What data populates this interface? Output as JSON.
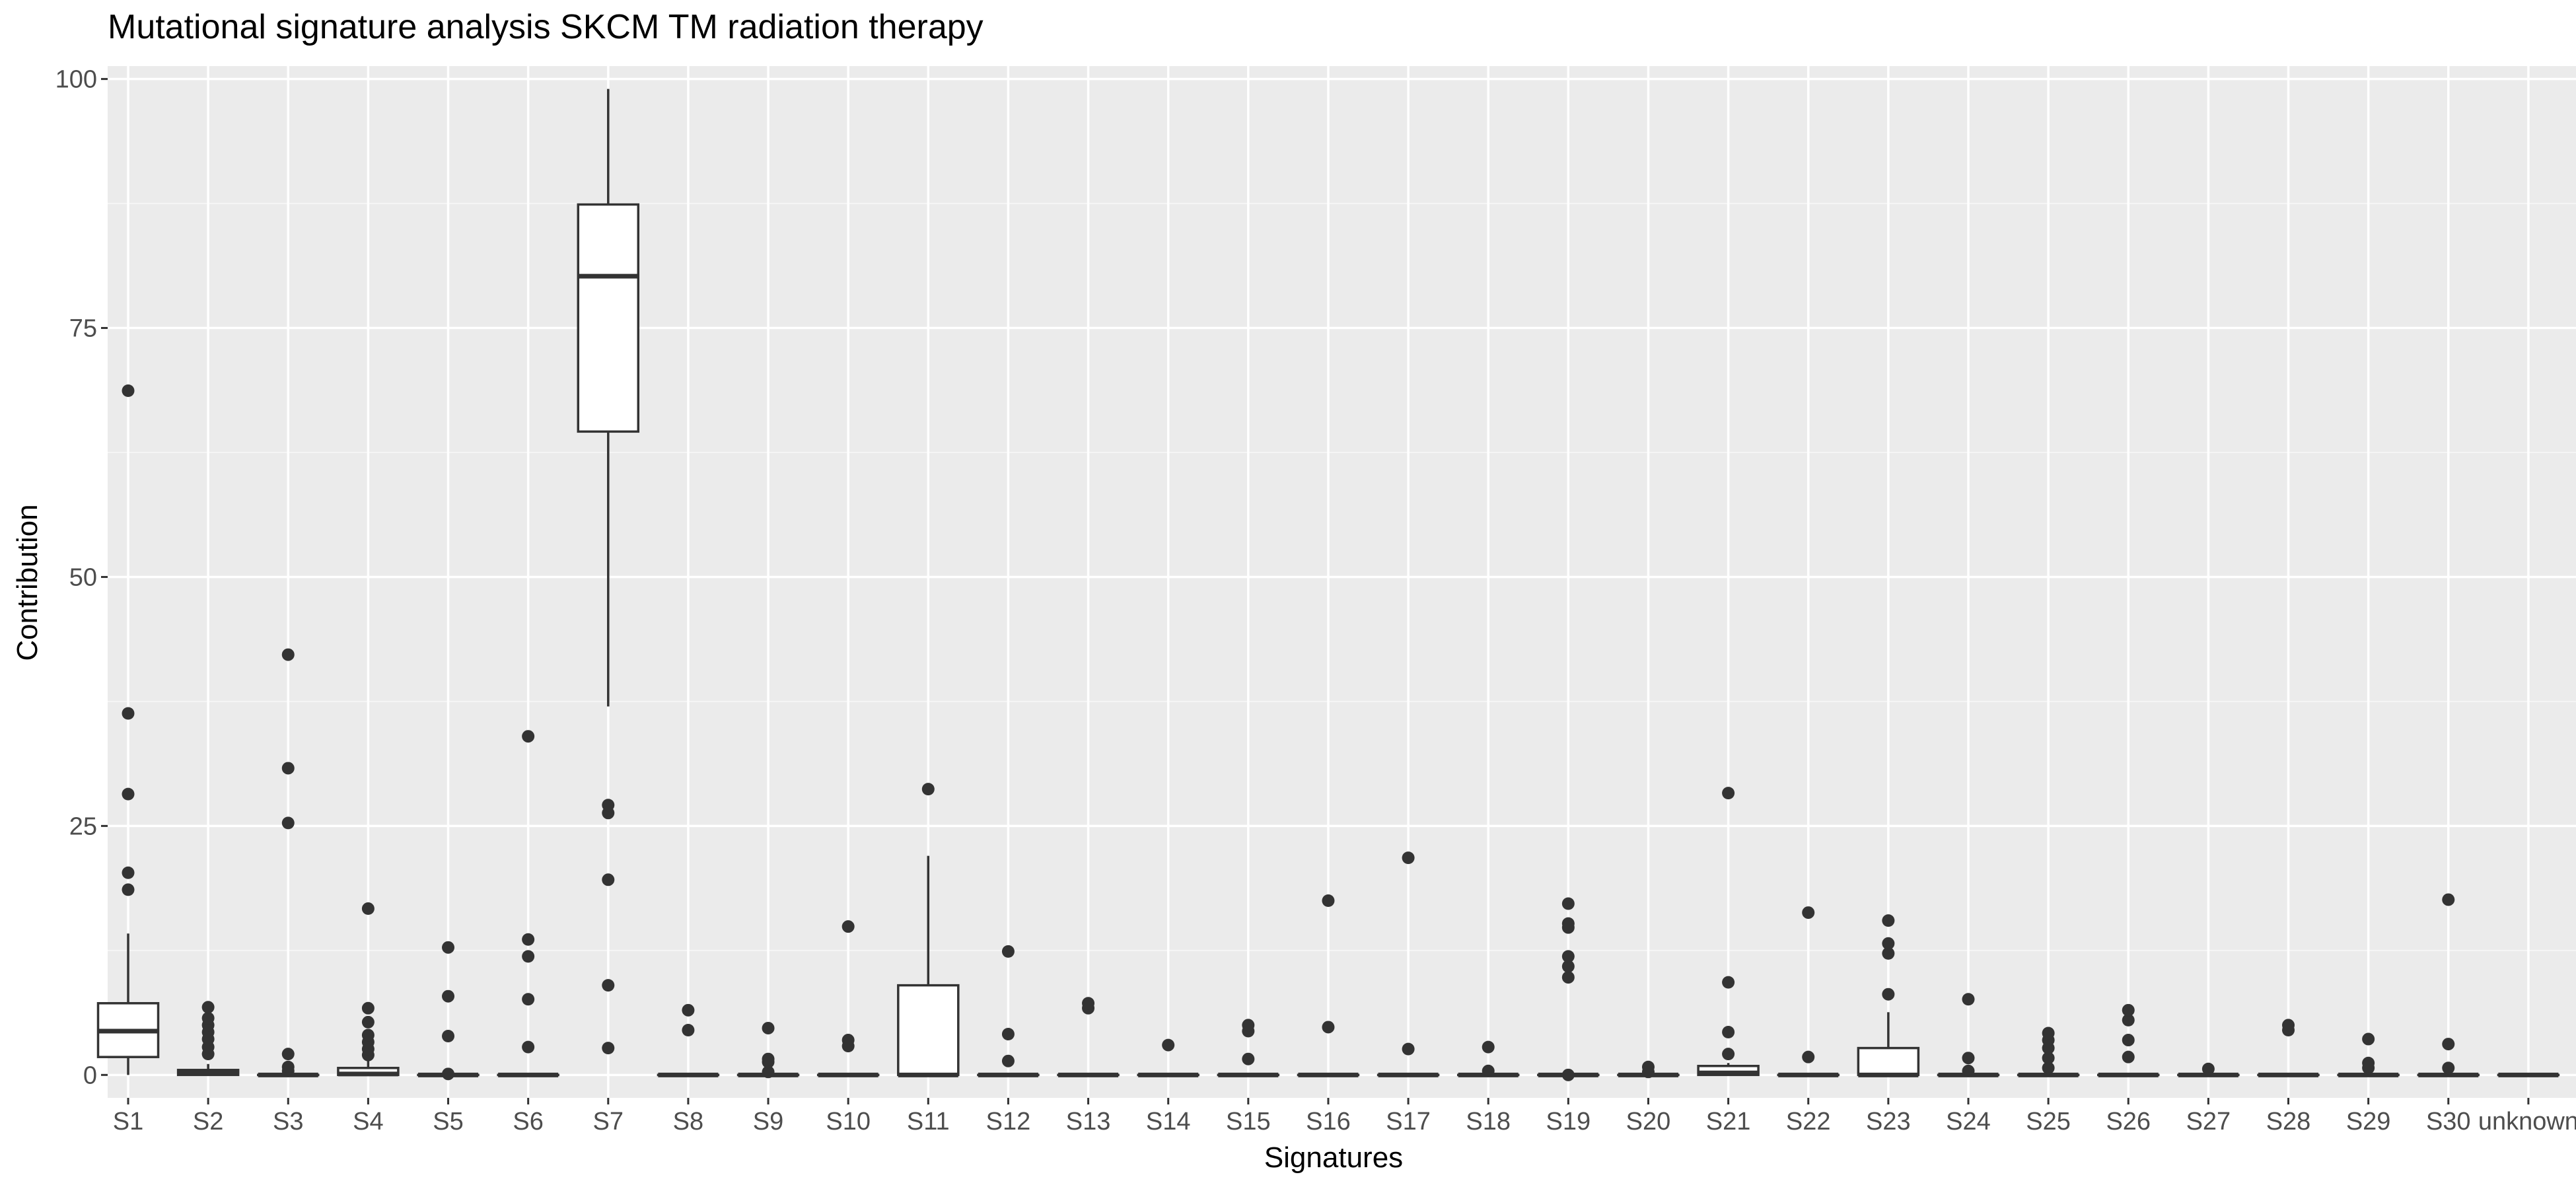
{
  "chart_data": {
    "type": "boxplot",
    "title": "Mutational signature analysis SKCM TM radiation therapy",
    "xlabel": "Signatures",
    "ylabel": "Contribution",
    "ylim": [
      0,
      100
    ],
    "yticks": [
      0,
      25,
      50,
      75,
      100
    ],
    "grid": true,
    "legend": "none",
    "colors": {
      "panel": "#EBEBEB",
      "grid_major": "#FFFFFF",
      "grid_minor": "#F5F5F5",
      "box_fill": "#FFFFFF",
      "box_line": "#333333",
      "outlier": "#333333",
      "tick_label": "#4D4D4D"
    },
    "categories": [
      "S1",
      "S2",
      "S3",
      "S4",
      "S5",
      "S6",
      "S7",
      "S8",
      "S9",
      "S10",
      "S11",
      "S12",
      "S13",
      "S14",
      "S15",
      "S16",
      "S17",
      "S18",
      "S19",
      "S20",
      "S21",
      "S22",
      "S23",
      "S24",
      "S25",
      "S26",
      "S27",
      "S28",
      "S29",
      "S30",
      "unknown"
    ],
    "boxes": [
      {
        "q1": 1.8,
        "median": 4.4,
        "q3": 7.2,
        "lower": 0,
        "upper": 14.2,
        "outliers": [
          18.6,
          20.3,
          28.2,
          36.3,
          68.7
        ]
      },
      {
        "q1": 0,
        "median": 0.2,
        "q3": 0.5,
        "lower": 0,
        "upper": 1.1,
        "outliers": [
          2.1,
          2.8,
          3.6,
          4.3,
          5.0,
          5.7,
          6.8
        ]
      },
      {
        "q1": 0,
        "median": 0,
        "q3": 0,
        "lower": 0,
        "upper": 0,
        "outliers": [
          0.4,
          0.8,
          2.1,
          25.3,
          30.8,
          42.2
        ]
      },
      {
        "q1": 0,
        "median": 0.1,
        "q3": 0.7,
        "lower": 0,
        "upper": 1.6,
        "outliers": [
          2.0,
          2.6,
          3.3,
          4.0,
          5.3,
          6.7,
          16.7
        ]
      },
      {
        "q1": 0,
        "median": 0,
        "q3": 0,
        "lower": 0,
        "upper": 0,
        "outliers": [
          0.1,
          3.9,
          7.9,
          12.8
        ]
      },
      {
        "q1": 0,
        "median": 0,
        "q3": 0,
        "lower": 0,
        "upper": 0,
        "outliers": [
          2.8,
          7.6,
          11.9,
          13.6,
          34.0
        ]
      },
      {
        "q1": 64.6,
        "median": 80.2,
        "q3": 87.4,
        "lower": 37.0,
        "upper": 99.0,
        "outliers": [
          2.7,
          9.0,
          19.6,
          26.3,
          27.1
        ]
      },
      {
        "q1": 0,
        "median": 0,
        "q3": 0,
        "lower": 0,
        "upper": 0,
        "outliers": [
          4.5,
          6.5
        ]
      },
      {
        "q1": 0,
        "median": 0,
        "q3": 0,
        "lower": 0,
        "upper": 0,
        "outliers": [
          0.3,
          1.3,
          1.6,
          4.7
        ]
      },
      {
        "q1": 0,
        "median": 0,
        "q3": 0,
        "lower": 0,
        "upper": 0,
        "outliers": [
          2.9,
          3.5,
          14.9
        ]
      },
      {
        "q1": 0,
        "median": 0,
        "q3": 9.0,
        "lower": 0,
        "upper": 22.0,
        "outliers": [
          28.7
        ]
      },
      {
        "q1": 0,
        "median": 0,
        "q3": 0,
        "lower": 0,
        "upper": 0,
        "outliers": [
          1.4,
          4.1,
          12.4
        ]
      },
      {
        "q1": 0,
        "median": 0,
        "q3": 0,
        "lower": 0,
        "upper": 0,
        "outliers": [
          6.7,
          7.2
        ]
      },
      {
        "q1": 0,
        "median": 0,
        "q3": 0,
        "lower": 0,
        "upper": 0,
        "outliers": [
          3.0
        ]
      },
      {
        "q1": 0,
        "median": 0,
        "q3": 0,
        "lower": 0,
        "upper": 0,
        "outliers": [
          1.6,
          4.4,
          5.0
        ]
      },
      {
        "q1": 0,
        "median": 0,
        "q3": 0,
        "lower": 0,
        "upper": 0,
        "outliers": [
          4.8,
          17.5
        ]
      },
      {
        "q1": 0,
        "median": 0,
        "q3": 0,
        "lower": 0,
        "upper": 0,
        "outliers": [
          2.6,
          21.8
        ]
      },
      {
        "q1": 0,
        "median": 0,
        "q3": 0,
        "lower": 0,
        "upper": 0,
        "outliers": [
          0.4,
          2.8
        ]
      },
      {
        "q1": 0,
        "median": 0,
        "q3": 0,
        "lower": 0,
        "upper": 0,
        "outliers": [
          0,
          9.8,
          10.9,
          11.9,
          14.8,
          15.2,
          17.2
        ]
      },
      {
        "q1": 0,
        "median": 0,
        "q3": 0,
        "lower": 0,
        "upper": 0,
        "outliers": [
          0.3,
          0.8
        ]
      },
      {
        "q1": 0,
        "median": 0.2,
        "q3": 0.9,
        "lower": 0,
        "upper": 1.2,
        "outliers": [
          2.1,
          4.3,
          9.3,
          28.3
        ]
      },
      {
        "q1": 0,
        "median": 0,
        "q3": 0,
        "lower": 0,
        "upper": 0,
        "outliers": [
          1.8,
          16.3
        ]
      },
      {
        "q1": 0,
        "median": 0,
        "q3": 2.7,
        "lower": 0,
        "upper": 6.3,
        "outliers": [
          8.1,
          12.2,
          13.2,
          15.5
        ]
      },
      {
        "q1": 0,
        "median": 0,
        "q3": 0,
        "lower": 0,
        "upper": 0,
        "outliers": [
          0.4,
          1.7,
          7.6
        ]
      },
      {
        "q1": 0,
        "median": 0,
        "q3": 0,
        "lower": 0,
        "upper": 0,
        "outliers": [
          0.7,
          1.7,
          2.7,
          3.5,
          4.2
        ]
      },
      {
        "q1": 0,
        "median": 0,
        "q3": 0,
        "lower": 0,
        "upper": 0,
        "outliers": [
          1.8,
          3.5,
          5.5,
          6.5
        ]
      },
      {
        "q1": 0,
        "median": 0,
        "q3": 0,
        "lower": 0,
        "upper": 0,
        "outliers": [
          0.6
        ]
      },
      {
        "q1": 0,
        "median": 0,
        "q3": 0,
        "lower": 0,
        "upper": 0,
        "outliers": [
          4.5,
          5.0
        ]
      },
      {
        "q1": 0,
        "median": 0,
        "q3": 0,
        "lower": 0,
        "upper": 0,
        "outliers": [
          0.7,
          1.2,
          3.6
        ]
      },
      {
        "q1": 0,
        "median": 0,
        "q3": 0,
        "lower": 0,
        "upper": 0,
        "outliers": [
          0.7,
          3.1,
          17.6
        ]
      },
      {
        "q1": 0,
        "median": 0,
        "q3": 0,
        "lower": 0,
        "upper": 0,
        "outliers": []
      }
    ]
  }
}
